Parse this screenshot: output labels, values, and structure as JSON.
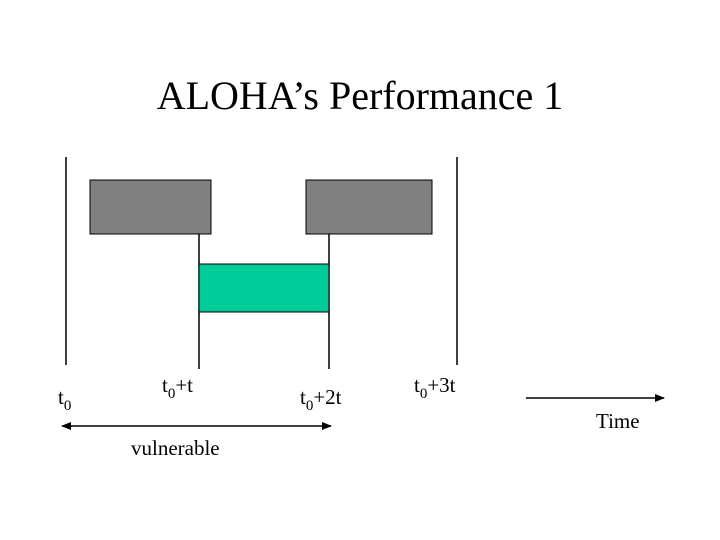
{
  "title": "ALOHA’s Performance 1",
  "colors": {
    "frame_other": "#808080",
    "frame_target": "#00cc99",
    "stroke": "#000000"
  },
  "labels": {
    "t0": {
      "base": "t",
      "sub": "0",
      "rest": ""
    },
    "t0_plus_t": {
      "base": "t",
      "sub": "0",
      "rest": "+t"
    },
    "t0_plus_2t": {
      "base": "t",
      "sub": "0",
      "rest": "+2t"
    },
    "t0_plus_3t": {
      "base": "t",
      "sub": "0",
      "rest": "+3t"
    },
    "vulnerable": "vulnerable",
    "time": "Time"
  }
}
